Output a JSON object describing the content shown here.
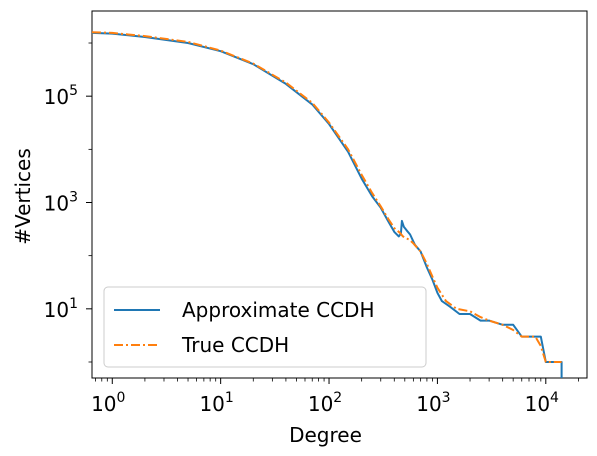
{
  "chart_data": {
    "type": "line",
    "xlabel": "Degree",
    "ylabel": "#Vertices",
    "xscale": "log",
    "yscale": "log",
    "xlim": [
      0.65,
      24000
    ],
    "ylim": [
      0.5,
      4000000
    ],
    "xticks": [
      {
        "value": 1,
        "label": "10⁰"
      },
      {
        "value": 10,
        "label": "10¹"
      },
      {
        "value": 100,
        "label": "10²"
      },
      {
        "value": 1000,
        "label": "10³"
      },
      {
        "value": 10000,
        "label": "10⁴"
      }
    ],
    "yticks": [
      {
        "value": 10,
        "label": "10¹"
      },
      {
        "value": 1000,
        "label": "10³"
      },
      {
        "value": 100000,
        "label": "10⁵"
      }
    ],
    "grid": false,
    "legend_position": "lower-left",
    "series": [
      {
        "name": "Approximate CCDH",
        "color": "#1f77b4",
        "style": "solid",
        "x": [
          0.65,
          1,
          2,
          5,
          10,
          20,
          40,
          70,
          100,
          150,
          200,
          250,
          300,
          350,
          400,
          440,
          460,
          470,
          490,
          520,
          560,
          620,
          700,
          800,
          900,
          1000,
          1100,
          1300,
          1600,
          2000,
          2500,
          3000,
          4000,
          5000,
          6000,
          7000,
          8000,
          9000,
          10000,
          12000,
          14000,
          14000
        ],
        "y": [
          1550000,
          1500000,
          1300000,
          1000000,
          700000,
          400000,
          170000,
          70000,
          30000,
          9000,
          2800,
          1300,
          800,
          450,
          280,
          230,
          260,
          450,
          350,
          300,
          250,
          160,
          120,
          60,
          35,
          20,
          14,
          11,
          8,
          8,
          6,
          6,
          5,
          5,
          3,
          3,
          3,
          3,
          1,
          1,
          1,
          0.5
        ]
      },
      {
        "name": "True CCDH",
        "color": "#ff7f0e",
        "style": "dashdot",
        "x": [
          0.65,
          1,
          2,
          5,
          10,
          20,
          40,
          70,
          100,
          150,
          200,
          250,
          300,
          350,
          400,
          450,
          480,
          500,
          550,
          600,
          700,
          800,
          900,
          1000,
          1200,
          1500,
          2000,
          2500,
          3000,
          4000,
          5000,
          6000,
          7000,
          8000,
          9000,
          10000,
          12000,
          14000
        ],
        "y": [
          1600000,
          1550000,
          1350000,
          1050000,
          720000,
          410000,
          180000,
          75000,
          32000,
          10000,
          3300,
          1500,
          850,
          500,
          330,
          270,
          230,
          220,
          200,
          170,
          120,
          70,
          40,
          25,
          14,
          10,
          9,
          7,
          6,
          5,
          4,
          3,
          3,
          3,
          2,
          1,
          1,
          1
        ]
      }
    ]
  }
}
